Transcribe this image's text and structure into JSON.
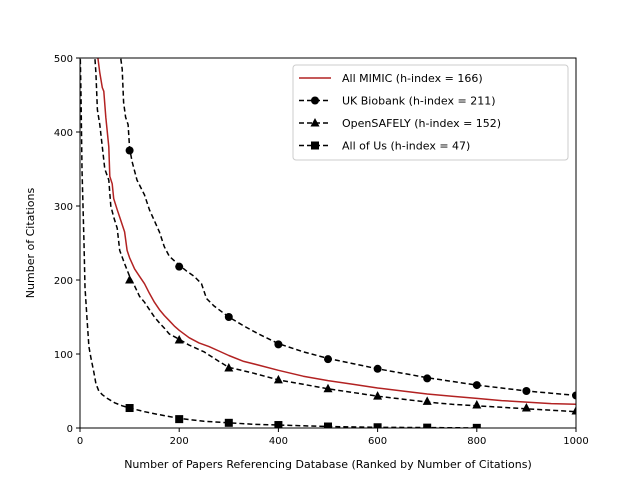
{
  "chart_data": {
    "type": "line",
    "xlabel": "Number of Papers Referencing Database (Ranked by Number of Citations)",
    "ylabel": "Number of Citations",
    "xlim": [
      0,
      1000
    ],
    "ylim": [
      0,
      500
    ],
    "xticks": [
      0,
      200,
      400,
      600,
      800,
      1000
    ],
    "yticks": [
      0,
      100,
      200,
      300,
      400,
      500
    ],
    "grid": false,
    "legend_position": "top-right",
    "series": [
      {
        "name": "All MIMIC (h-index = 166)",
        "color": "#b22222",
        "line_style": "solid",
        "marker": "none",
        "points": [
          [
            32,
            520
          ],
          [
            36,
            500
          ],
          [
            40,
            480
          ],
          [
            45,
            460
          ],
          [
            48,
            455
          ],
          [
            52,
            420
          ],
          [
            58,
            380
          ],
          [
            60,
            340
          ],
          [
            65,
            330
          ],
          [
            68,
            310
          ],
          [
            75,
            295
          ],
          [
            80,
            285
          ],
          [
            90,
            265
          ],
          [
            95,
            240
          ],
          [
            100,
            230
          ],
          [
            110,
            215
          ],
          [
            120,
            205
          ],
          [
            130,
            195
          ],
          [
            140,
            182
          ],
          [
            150,
            170
          ],
          [
            160,
            160
          ],
          [
            170,
            152
          ],
          [
            180,
            145
          ],
          [
            190,
            138
          ],
          [
            200,
            132
          ],
          [
            220,
            122
          ],
          [
            240,
            115
          ],
          [
            260,
            110
          ],
          [
            280,
            104
          ],
          [
            300,
            98
          ],
          [
            330,
            90
          ],
          [
            360,
            85
          ],
          [
            400,
            78
          ],
          [
            450,
            70
          ],
          [
            500,
            64
          ],
          [
            550,
            59
          ],
          [
            600,
            54
          ],
          [
            650,
            50
          ],
          [
            700,
            46
          ],
          [
            750,
            43
          ],
          [
            800,
            40
          ],
          [
            850,
            37
          ],
          [
            900,
            35
          ],
          [
            950,
            33
          ],
          [
            1000,
            32
          ]
        ]
      },
      {
        "name": "UK Biobank (h-index = 211)",
        "color": "#000000",
        "line_style": "dashed",
        "marker": "circle",
        "points": [
          [
            75,
            520
          ],
          [
            82,
            500
          ],
          [
            85,
            485
          ],
          [
            88,
            440
          ],
          [
            92,
            420
          ],
          [
            97,
            410
          ],
          [
            100,
            378
          ],
          [
            105,
            360
          ],
          [
            115,
            335
          ],
          [
            130,
            315
          ],
          [
            140,
            295
          ],
          [
            150,
            280
          ],
          [
            160,
            265
          ],
          [
            170,
            245
          ],
          [
            180,
            232
          ],
          [
            200,
            220
          ],
          [
            215,
            212
          ],
          [
            230,
            205
          ],
          [
            245,
            195
          ],
          [
            255,
            175
          ],
          [
            270,
            165
          ],
          [
            300,
            150
          ],
          [
            330,
            138
          ],
          [
            360,
            127
          ],
          [
            400,
            114
          ],
          [
            450,
            103
          ],
          [
            500,
            94
          ],
          [
            550,
            87
          ],
          [
            600,
            80
          ],
          [
            650,
            74
          ],
          [
            700,
            68
          ],
          [
            750,
            63
          ],
          [
            800,
            58
          ],
          [
            850,
            54
          ],
          [
            900,
            50
          ],
          [
            950,
            47
          ],
          [
            1000,
            44
          ]
        ],
        "marker_points": [
          [
            100,
            375
          ],
          [
            200,
            218
          ],
          [
            300,
            150
          ],
          [
            400,
            113
          ],
          [
            500,
            93
          ],
          [
            600,
            80
          ],
          [
            700,
            67
          ],
          [
            800,
            58
          ],
          [
            900,
            50
          ],
          [
            1000,
            44
          ]
        ]
      },
      {
        "name": "OpenSAFELY (h-index = 152)",
        "color": "#000000",
        "line_style": "dashed",
        "marker": "triangle",
        "points": [
          [
            28,
            520
          ],
          [
            32,
            480
          ],
          [
            35,
            430
          ],
          [
            40,
            410
          ],
          [
            45,
            380
          ],
          [
            50,
            350
          ],
          [
            58,
            335
          ],
          [
            62,
            300
          ],
          [
            68,
            285
          ],
          [
            75,
            270
          ],
          [
            80,
            240
          ],
          [
            90,
            222
          ],
          [
            100,
            205
          ],
          [
            110,
            192
          ],
          [
            120,
            178
          ],
          [
            130,
            170
          ],
          [
            140,
            160
          ],
          [
            150,
            150
          ],
          [
            160,
            142
          ],
          [
            170,
            135
          ],
          [
            180,
            127
          ],
          [
            200,
            120
          ],
          [
            220,
            112
          ],
          [
            250,
            103
          ],
          [
            280,
            90
          ],
          [
            300,
            82
          ],
          [
            350,
            74
          ],
          [
            400,
            65
          ],
          [
            450,
            59
          ],
          [
            500,
            53
          ],
          [
            550,
            48
          ],
          [
            600,
            43
          ],
          [
            650,
            39
          ],
          [
            700,
            35
          ],
          [
            750,
            32
          ],
          [
            800,
            30
          ],
          [
            850,
            28
          ],
          [
            900,
            26
          ],
          [
            950,
            24
          ],
          [
            1000,
            22
          ]
        ],
        "marker_points": [
          [
            100,
            200
          ],
          [
            200,
            119
          ],
          [
            300,
            81
          ],
          [
            400,
            65
          ],
          [
            500,
            53
          ],
          [
            600,
            43
          ],
          [
            700,
            36
          ],
          [
            800,
            31
          ],
          [
            900,
            27
          ],
          [
            1000,
            23
          ]
        ]
      },
      {
        "name": "All of Us (h-index = 47)",
        "color": "#000000",
        "line_style": "dashed",
        "marker": "square",
        "points": [
          [
            0,
            520
          ],
          [
            2,
            450
          ],
          [
            4,
            350
          ],
          [
            6,
            300
          ],
          [
            8,
            250
          ],
          [
            10,
            190
          ],
          [
            14,
            150
          ],
          [
            18,
            110
          ],
          [
            22,
            95
          ],
          [
            28,
            75
          ],
          [
            32,
            60
          ],
          [
            38,
            50
          ],
          [
            45,
            45
          ],
          [
            55,
            40
          ],
          [
            70,
            34
          ],
          [
            85,
            30
          ],
          [
            100,
            27
          ],
          [
            130,
            22
          ],
          [
            160,
            18
          ],
          [
            200,
            13
          ],
          [
            250,
            9
          ],
          [
            300,
            7
          ],
          [
            350,
            5
          ],
          [
            400,
            4
          ],
          [
            450,
            3
          ],
          [
            500,
            2
          ],
          [
            600,
            1
          ],
          [
            700,
            0.5
          ],
          [
            800,
            0.2
          ]
        ],
        "marker_points": [
          [
            100,
            27
          ],
          [
            200,
            12
          ],
          [
            300,
            7
          ],
          [
            400,
            4
          ],
          [
            500,
            2
          ],
          [
            600,
            1
          ],
          [
            700,
            0.5
          ],
          [
            800,
            0.2
          ]
        ]
      }
    ]
  }
}
